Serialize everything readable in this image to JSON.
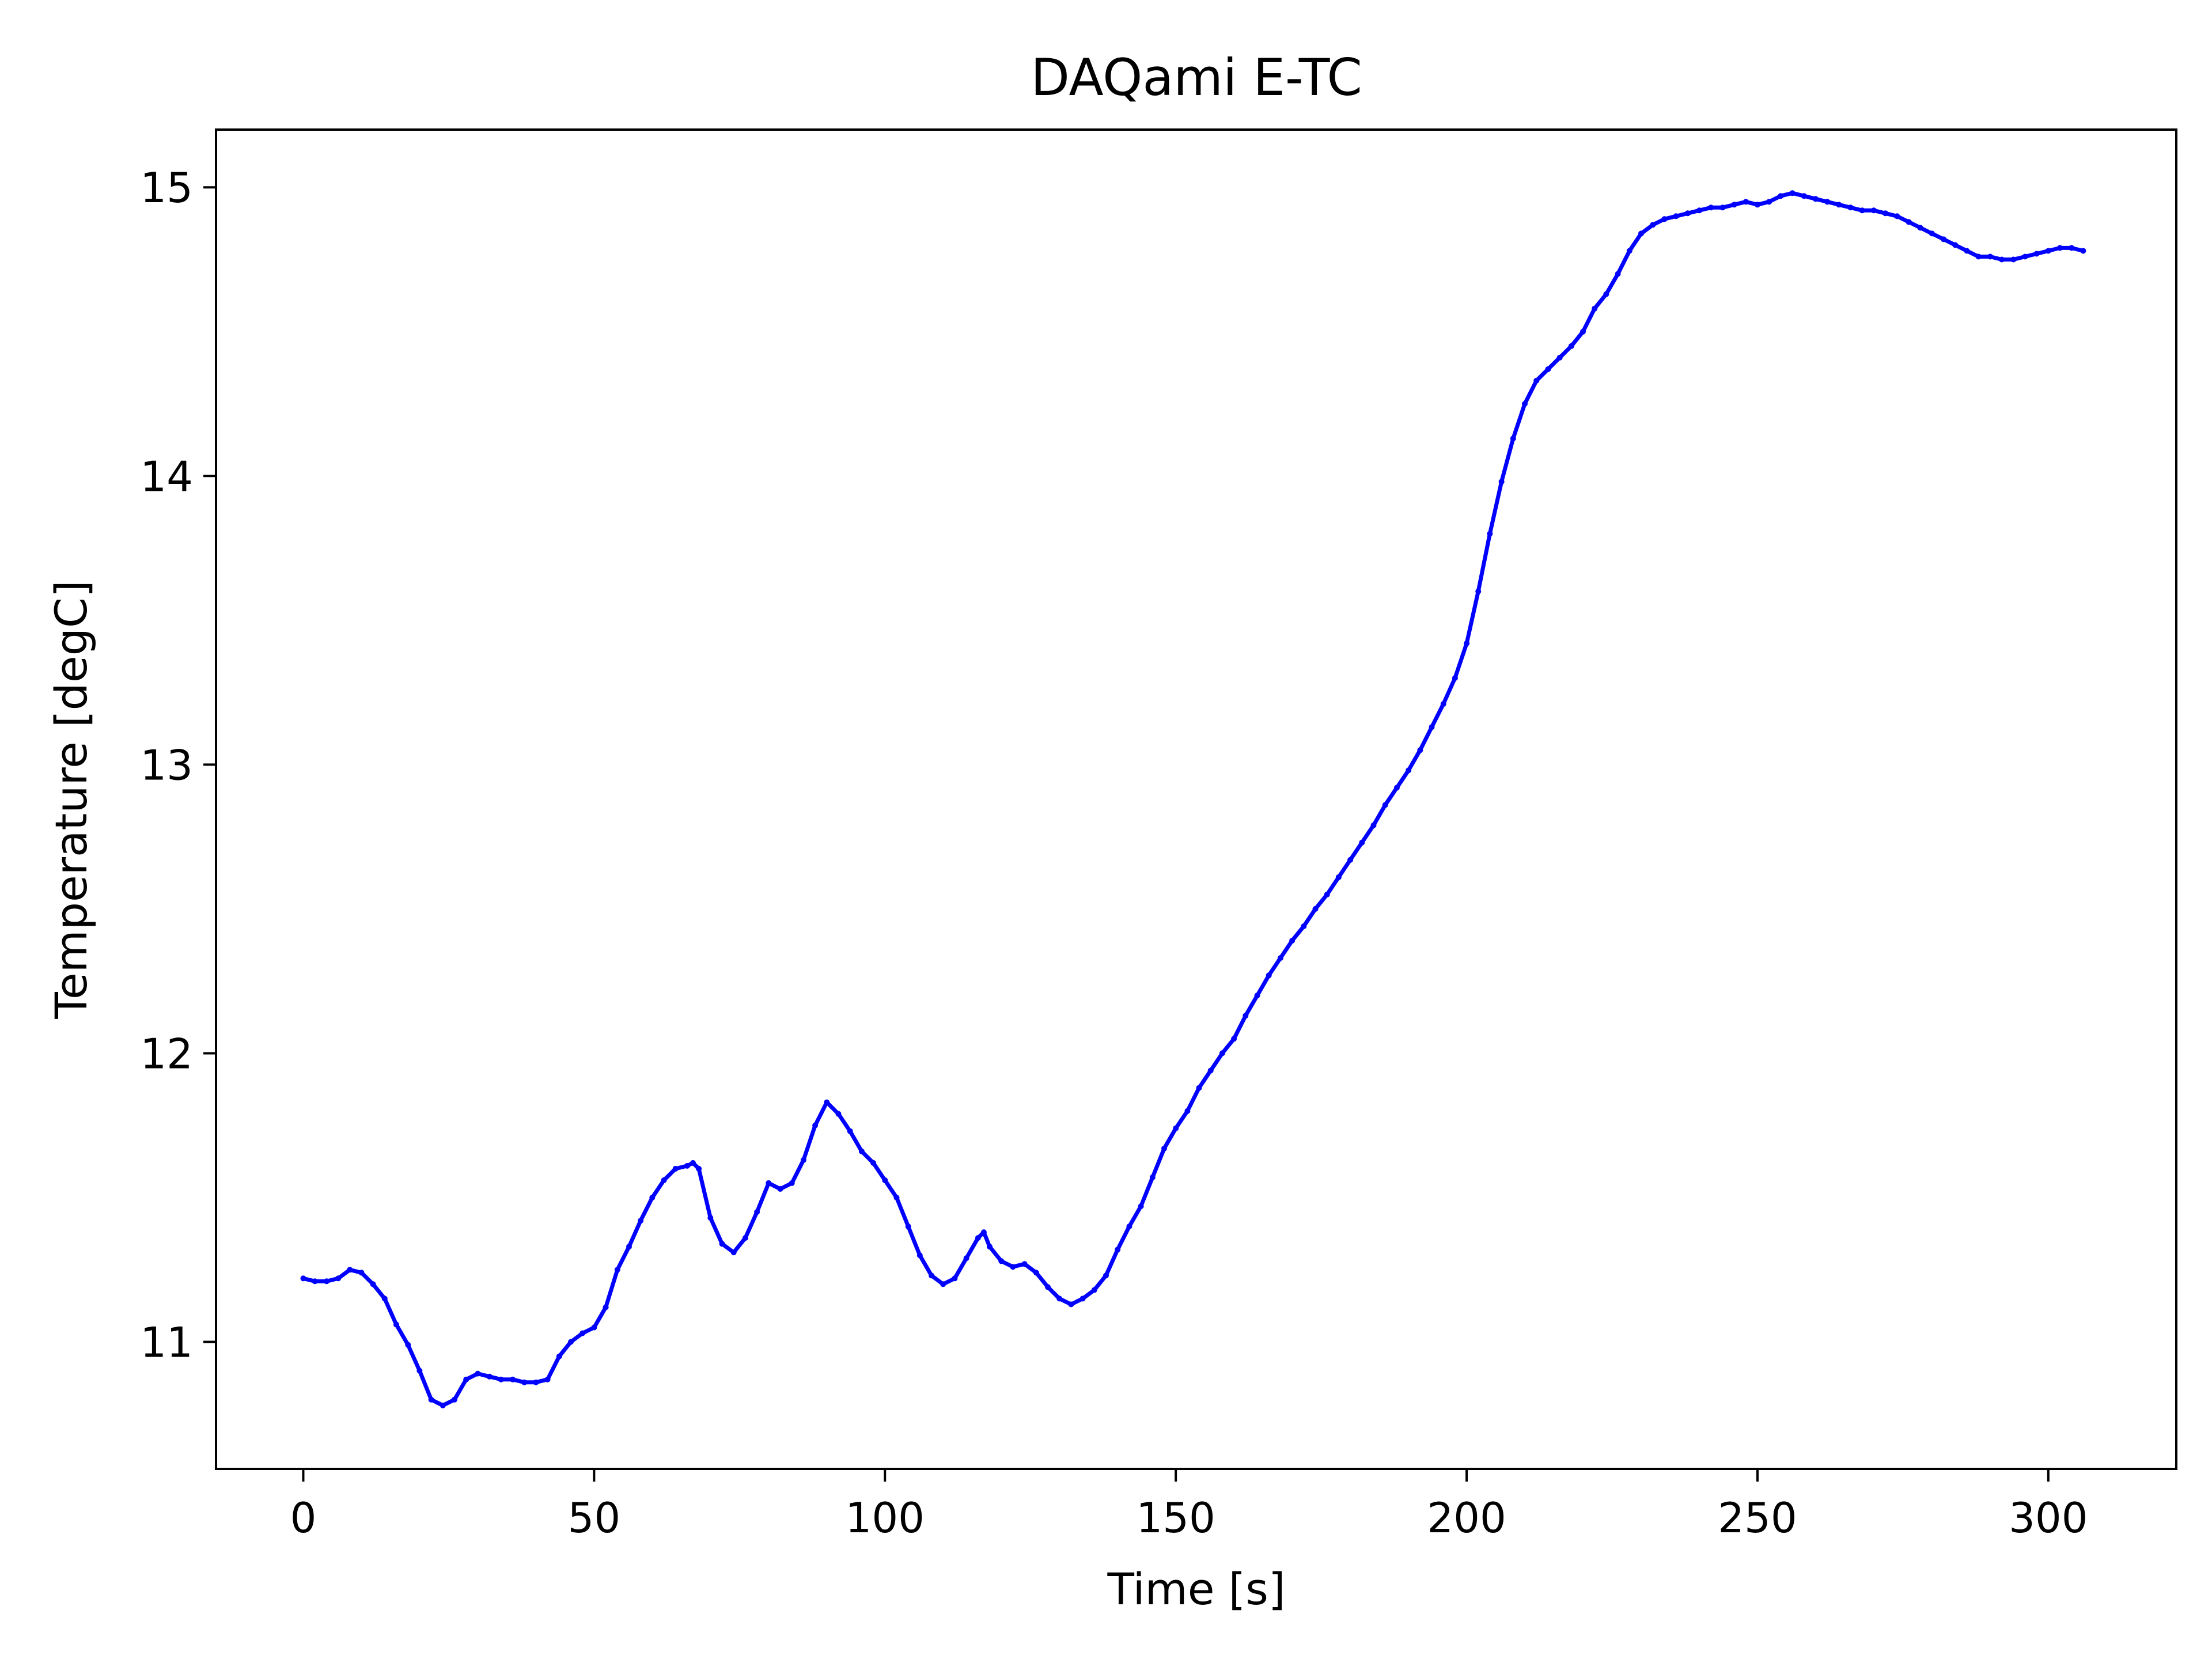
{
  "chart_data": {
    "type": "line",
    "title": "DAQami E-TC",
    "xlabel": "Time [s]",
    "ylabel": "Temperature [degC]",
    "xlim": [
      -15,
      322
    ],
    "ylim": [
      10.56,
      15.2
    ],
    "xticks": [
      "0",
      "50",
      "100",
      "150",
      "200",
      "250",
      "300"
    ],
    "yticks": [
      "11",
      "12",
      "13",
      "14",
      "15"
    ],
    "grid": false,
    "series": [
      {
        "color": "#0000ff",
        "x": [
          0,
          2,
          4,
          6,
          8,
          10,
          12,
          14,
          16,
          18,
          20,
          22,
          24,
          26,
          28,
          30,
          32,
          34,
          36,
          38,
          40,
          42,
          44,
          46,
          48,
          50,
          52,
          54,
          56,
          58,
          60,
          62,
          64,
          66,
          67,
          68,
          70,
          72,
          74,
          76,
          78,
          80,
          82,
          84,
          86,
          88,
          90,
          92,
          94,
          96,
          98,
          100,
          102,
          104,
          106,
          108,
          110,
          112,
          114,
          116,
          117,
          118,
          120,
          122,
          124,
          126,
          128,
          130,
          132,
          134,
          136,
          138,
          140,
          142,
          144,
          146,
          148,
          150,
          152,
          154,
          156,
          158,
          160,
          162,
          164,
          166,
          168,
          170,
          172,
          174,
          176,
          178,
          180,
          182,
          184,
          186,
          188,
          190,
          192,
          194,
          196,
          198,
          200,
          202,
          204,
          206,
          208,
          210,
          212,
          214,
          216,
          218,
          220,
          222,
          224,
          226,
          228,
          230,
          232,
          234,
          236,
          238,
          240,
          242,
          244,
          246,
          248,
          250,
          252,
          254,
          256,
          258,
          260,
          262,
          264,
          266,
          268,
          270,
          272,
          274,
          276,
          278,
          280,
          282,
          284,
          286,
          288,
          290,
          292,
          294,
          296,
          298,
          300,
          302,
          304,
          306
        ],
        "y": [
          11.22,
          11.21,
          11.21,
          11.22,
          11.25,
          11.24,
          11.2,
          11.15,
          11.06,
          10.99,
          10.9,
          10.8,
          10.78,
          10.8,
          10.87,
          10.89,
          10.88,
          10.87,
          10.87,
          10.86,
          10.86,
          10.87,
          10.95,
          11.0,
          11.03,
          11.05,
          11.12,
          11.25,
          11.33,
          11.42,
          11.5,
          11.56,
          11.6,
          11.61,
          11.62,
          11.6,
          11.43,
          11.34,
          11.31,
          11.36,
          11.45,
          11.55,
          11.53,
          11.55,
          11.63,
          11.75,
          11.83,
          11.79,
          11.73,
          11.66,
          11.62,
          11.56,
          11.5,
          11.4,
          11.3,
          11.23,
          11.2,
          11.22,
          11.29,
          11.36,
          11.38,
          11.33,
          11.28,
          11.26,
          11.27,
          11.24,
          11.19,
          11.15,
          11.13,
          11.15,
          11.18,
          11.23,
          11.32,
          11.4,
          11.47,
          11.57,
          11.67,
          11.74,
          11.8,
          11.88,
          11.94,
          12.0,
          12.05,
          12.13,
          12.2,
          12.27,
          12.33,
          12.39,
          12.44,
          12.5,
          12.55,
          12.61,
          12.67,
          12.73,
          12.79,
          12.86,
          12.92,
          12.98,
          13.05,
          13.13,
          13.21,
          13.3,
          13.42,
          13.6,
          13.8,
          13.98,
          14.13,
          14.25,
          14.33,
          14.37,
          14.41,
          14.45,
          14.5,
          14.58,
          14.63,
          14.7,
          14.78,
          14.84,
          14.87,
          14.89,
          14.9,
          14.91,
          14.92,
          14.93,
          14.93,
          14.94,
          14.95,
          14.94,
          14.95,
          14.97,
          14.98,
          14.97,
          14.96,
          14.95,
          14.94,
          14.93,
          14.92,
          14.92,
          14.91,
          14.9,
          14.88,
          14.86,
          14.84,
          14.82,
          14.8,
          14.78,
          14.76,
          14.76,
          14.75,
          14.75,
          14.76,
          14.77,
          14.78,
          14.79,
          14.79,
          14.78
        ]
      }
    ]
  }
}
